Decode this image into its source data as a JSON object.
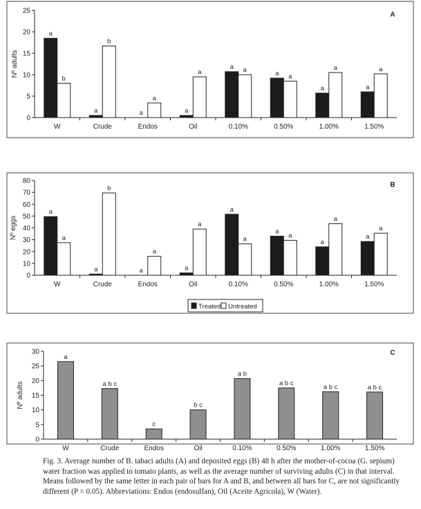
{
  "chart_data": [
    {
      "type": "bar",
      "panel_letter": "A",
      "ylabel": "Nº adults",
      "categories": [
        "W",
        "Crude",
        "Endos",
        "Oil",
        "0.10%",
        "0.50%",
        "1.00%",
        "1.50%"
      ],
      "ylim": [
        0,
        25
      ],
      "yticks": [
        "0",
        "5",
        "10",
        "15",
        "20",
        "25"
      ],
      "series": [
        {
          "name": "Treated",
          "color": "#1c1c1c",
          "values": [
            18.5,
            0.5,
            0,
            0.5,
            10.7,
            9.2,
            5.7,
            6.0
          ],
          "labels": [
            "a",
            "a",
            "a",
            "a",
            "a",
            "a",
            "a",
            "a"
          ]
        },
        {
          "name": "Untreated",
          "color": "#ffffff",
          "values": [
            8.0,
            16.7,
            3.4,
            9.5,
            10.0,
            8.5,
            10.5,
            10.2
          ],
          "labels": [
            "b",
            "b",
            "a",
            "a",
            "a",
            "a",
            "a",
            "a"
          ]
        }
      ]
    },
    {
      "type": "bar",
      "panel_letter": "B",
      "ylabel": "Nº eggs",
      "categories": [
        "W",
        "Crude",
        "Endos",
        "Oil",
        "0.10%",
        "0.50%",
        "1.00%",
        "1.50%"
      ],
      "ylim": [
        0,
        80
      ],
      "yticks": [
        "0",
        "10",
        "20",
        "30",
        "40",
        "50",
        "60",
        "70",
        "80"
      ],
      "series": [
        {
          "name": "Treated",
          "color": "#1c1c1c",
          "values": [
            49.5,
            1.0,
            0,
            2.0,
            51.5,
            33.0,
            24.0,
            28.5
          ],
          "labels": [
            "a",
            "a",
            "a",
            "a",
            "a",
            "a",
            "a",
            "a"
          ]
        },
        {
          "name": "Untreated",
          "color": "#ffffff",
          "values": [
            27.5,
            69.5,
            16.0,
            39.0,
            26.5,
            29.5,
            43.5,
            35.5
          ],
          "labels": [
            "a",
            "b",
            "a",
            "a",
            "a",
            "a",
            "a",
            "a"
          ]
        }
      ],
      "legend": [
        "Treated",
        "Untreated"
      ]
    },
    {
      "type": "bar",
      "panel_letter": "C",
      "ylabel": "Nº adults",
      "categories": [
        "W",
        "Crude",
        "Endos",
        "Oil",
        "0.10%",
        "0.50%",
        "1.00%",
        "1.50%"
      ],
      "ylim": [
        0,
        30
      ],
      "yticks": [
        "0",
        "5",
        "10",
        "15",
        "20",
        "25",
        "30"
      ],
      "series": [
        {
          "color": "#8f8f8f",
          "values": [
            26.5,
            17.3,
            3.5,
            10.0,
            20.7,
            17.5,
            16.2,
            16.1
          ],
          "labels": [
            "a",
            "a b c",
            "c",
            "b c",
            "a b",
            "a b c",
            "a b c",
            "a b c"
          ]
        }
      ]
    }
  ],
  "caption": {
    "text": "Fig. 3. Average number of B. tabaci adults (A) and deposited eggs (B) 48 h after the mother-of-cocoa (G. sepium) water fraction was applied to tomato plants, as well as the average number of surviving adults (C) in that interval. Means followed by the same letter in each pair of bars for A and B, and between all bars for C, are not significantly different (P = 0.05). Abbreviations: Endos (endosulfan), Oil (Aceite Agricola), W (Water)."
  }
}
